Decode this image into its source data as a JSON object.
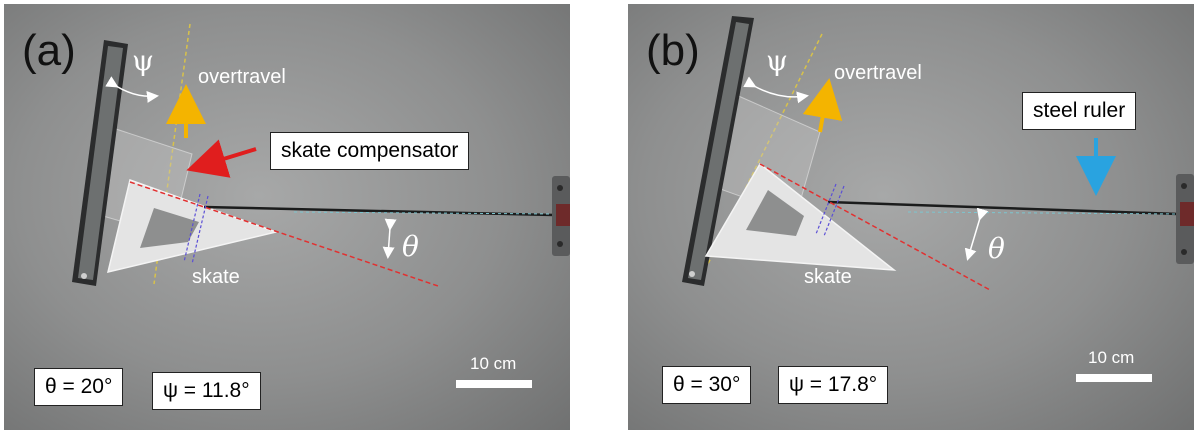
{
  "panels": [
    {
      "label": "(a)",
      "psi_symbol": "ψ",
      "theta_symbol": "θ",
      "overtravel_label": "overtravel",
      "skate_label": "skate",
      "callout_label": "skate compensator",
      "theta_value": "θ = 20°",
      "psi_value": "ψ = 11.8°",
      "scale_label": "10 cm"
    },
    {
      "label": "(b)",
      "psi_symbol": "ψ",
      "theta_symbol": "θ",
      "overtravel_label": "overtravel",
      "skate_label": "skate",
      "callout_label": "steel ruler",
      "theta_value": "θ = 30°",
      "psi_value": "ψ = 17.8°",
      "scale_label": "10 cm"
    }
  ],
  "colors": {
    "red_arrow": "#e01e1e",
    "yellow_arrow": "#f4b400",
    "blue_arrow": "#29a3e0",
    "red_dashed": "#e23030",
    "yellow_dashed": "#d8c24a",
    "purple_dashed": "#5b4fd6"
  }
}
